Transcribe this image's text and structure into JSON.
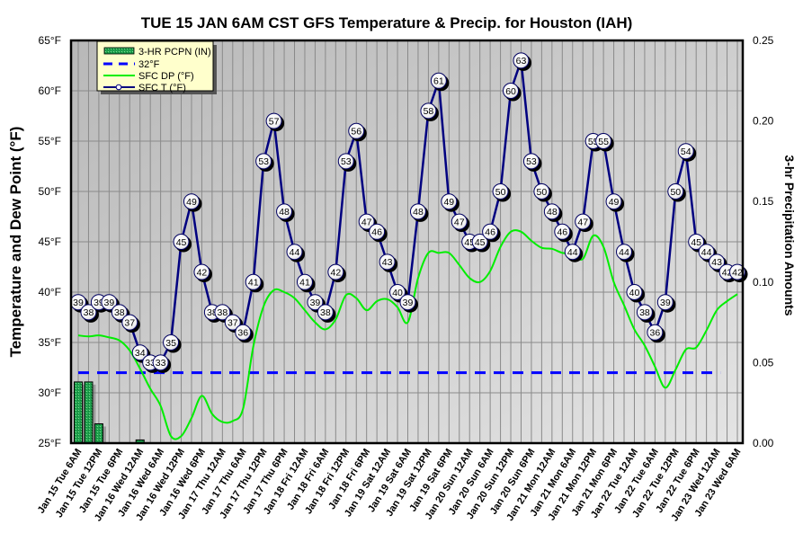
{
  "chart_data": {
    "type": "line",
    "title": "TUE 15 JAN 6AM CST GFS Temperature & Precip. for Houston (IAH)",
    "ylabel": "Temperature and Dew Point (°F)",
    "y2label": "3-hr Precipitation Amounts",
    "ylim": [
      25,
      65
    ],
    "y2lim": [
      0,
      0.25
    ],
    "yticks": [
      "65°F",
      "60°F",
      "55°F",
      "50°F",
      "45°F",
      "40°F",
      "35°F",
      "30°F",
      "25°F"
    ],
    "y2ticks": [
      "0.25",
      "0.20",
      "0.15",
      "0.10",
      "0.05",
      "0.00"
    ],
    "grid": true,
    "x_step_hours": 3,
    "xtick_labels": [
      "Jan 15 Tue 6AM",
      "Jan 15 Tue 12PM",
      "Jan 15 Tue 6PM",
      "Jan 16 Wed 12AM",
      "Jan 16 Wed 6AM",
      "Jan 16 Wed 12PM",
      "Jan 16 Wed 6PM",
      "Jan 17 Thu 12AM",
      "Jan 17 Thu 6AM",
      "Jan 17 Thu 12PM",
      "Jan 17 Thu 6PM",
      "Jan 18 Fri 12AM",
      "Jan 18 Fri 6AM",
      "Jan 18 Fri 12PM",
      "Jan 18 Fri 6PM",
      "Jan 19 Sat 12AM",
      "Jan 19 Sat 6AM",
      "Jan 19 Sat 12PM",
      "Jan 19 Sat 6PM",
      "Jan 20 Sun 12AM",
      "Jan 20 Sun 6AM",
      "Jan 20 Sun 12PM",
      "Jan 20 Sun 6PM",
      "Jan 21 Mon 12AM",
      "Jan 21 Mon 6AM",
      "Jan 21 Mon 12PM",
      "Jan 21 Mon 6PM",
      "Jan 22 Tue 12AM",
      "Jan 22 Tue 6AM",
      "Jan 22 Tue 12PM",
      "Jan 22 Tue 6PM",
      "Jan 23 Wed 12AM",
      "Jan 23 Wed 6AM"
    ],
    "legend": {
      "placement": "top-left",
      "entries": [
        "3-HR PCPN  (IN)",
        "32°F",
        "SFC DP (°F)",
        "SFC T (°F)"
      ]
    },
    "series": [
      {
        "name": "SFC T (°F)",
        "color": "#000080",
        "values": [
          39,
          38,
          39,
          39,
          38,
          37,
          34,
          33,
          33,
          35,
          45,
          49,
          42,
          38,
          38,
          37,
          36,
          41,
          53,
          57,
          48,
          44,
          41,
          39,
          38,
          42,
          53,
          56,
          47,
          46,
          43,
          40,
          39,
          48,
          58,
          61,
          49,
          47,
          45,
          45,
          46,
          50,
          60,
          63,
          53,
          50,
          48,
          46,
          44,
          47,
          55,
          55,
          49,
          44,
          40,
          38,
          36,
          39,
          50,
          54,
          45,
          44,
          43,
          42,
          42
        ]
      },
      {
        "name": "SFC DP (°F)",
        "color": "#00ee00",
        "values": [
          35.7,
          35.6,
          35.7,
          35.5,
          35.2,
          34.2,
          32.4,
          30.4,
          28.7,
          25.7,
          25.7,
          27.5,
          29.7,
          27.9,
          27.1,
          27.2,
          28.4,
          34.6,
          38.6,
          40.2,
          40.0,
          39.4,
          38.2,
          37.0,
          36.3,
          37.3,
          39.7,
          39.4,
          38.2,
          39.1,
          39.3,
          38.5,
          37.0,
          41.4,
          43.9,
          43.9,
          43.9,
          42.7,
          41.4,
          41.0,
          42.1,
          44.5,
          46.0,
          46.0,
          45.1,
          44.4,
          44.3,
          43.9,
          43.8,
          43.3,
          45.6,
          44.5,
          41.0,
          38.7,
          36.3,
          34.7,
          32.6,
          30.5,
          32.3,
          34.3,
          34.5,
          36.2,
          38.2,
          39.1,
          39.8
        ]
      },
      {
        "name": "32°F",
        "color": "#0000ff",
        "value": 32
      },
      {
        "name": "3-HR PCPN  (IN)",
        "color": "#1e9e4a",
        "values": [
          0.038,
          0.038,
          0.012,
          0,
          0,
          0,
          0.002,
          0,
          0,
          0,
          0,
          0,
          0,
          0,
          0,
          0,
          0,
          0,
          0,
          0,
          0,
          0,
          0,
          0,
          0,
          0,
          0,
          0,
          0,
          0,
          0,
          0,
          0,
          0,
          0,
          0,
          0,
          0,
          0,
          0,
          0,
          0,
          0,
          0,
          0,
          0,
          0,
          0,
          0,
          0,
          0,
          0,
          0,
          0,
          0,
          0,
          0,
          0,
          0,
          0,
          0,
          0,
          0,
          0,
          0
        ]
      }
    ]
  }
}
